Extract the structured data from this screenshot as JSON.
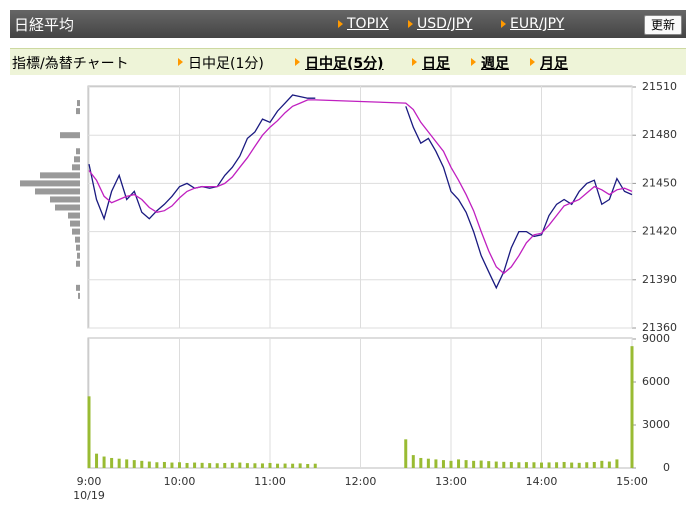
{
  "header": {
    "title": "日経平均",
    "links": [
      "TOPIX",
      "USD/JPY",
      "EUR/JPY"
    ],
    "button": "更新"
  },
  "tabs": {
    "label": "指標/為替チャート",
    "items": [
      "日中足(1分)",
      "日中足(5分)",
      "日足",
      "週足",
      "月足"
    ]
  },
  "chart_data": [
    {
      "type": "line",
      "date_label": "10/19",
      "xlim": [
        0,
        360
      ],
      "xticks": [
        {
          "value": 0,
          "label": "9:00"
        },
        {
          "value": 60,
          "label": "10:00"
        },
        {
          "value": 120,
          "label": "11:00"
        },
        {
          "value": 180,
          "label": "12:00"
        },
        {
          "value": 240,
          "label": "13:00"
        },
        {
          "value": 300,
          "label": "14:00"
        },
        {
          "value": 360,
          "label": "15:00"
        }
      ],
      "ylim": [
        21360,
        21510
      ],
      "yticks": [
        21360,
        21390,
        21420,
        21450,
        21480,
        21510
      ],
      "grid": true,
      "x": [
        0,
        5,
        10,
        15,
        20,
        25,
        30,
        35,
        40,
        45,
        50,
        55,
        60,
        65,
        70,
        75,
        80,
        85,
        90,
        95,
        100,
        105,
        110,
        115,
        120,
        125,
        130,
        135,
        140,
        145,
        150,
        180,
        210,
        215,
        220,
        225,
        230,
        235,
        240,
        245,
        250,
        255,
        260,
        265,
        270,
        275,
        280,
        285,
        290,
        295,
        300,
        305,
        310,
        315,
        320,
        325,
        330,
        335,
        340,
        345,
        350,
        355,
        360
      ],
      "series": [
        {
          "color": "#1a1a80",
          "values": [
            21462,
            21440,
            21428,
            21445,
            21455,
            21440,
            21445,
            21432,
            21428,
            21433,
            21437,
            21442,
            21448,
            21450,
            21447,
            21448,
            21447,
            21448,
            21455,
            21460,
            21467,
            21478,
            21482,
            21490,
            21488,
            21495,
            21500,
            21505,
            21504,
            21503,
            21503,
            null,
            21498,
            21485,
            21475,
            21478,
            21470,
            21460,
            21445,
            21440,
            21432,
            21420,
            21405,
            21395,
            21385,
            21395,
            21410,
            21420,
            21420,
            21417,
            21418,
            21430,
            21437,
            21440,
            21437,
            21445,
            21450,
            21452,
            21437,
            21440,
            21453,
            21445,
            21443
          ]
        },
        {
          "color": "#c020c0",
          "values": [
            21458,
            21452,
            21442,
            21438,
            21440,
            21442,
            21443,
            21440,
            21435,
            21432,
            21433,
            21436,
            21441,
            21445,
            21447,
            21448,
            21448,
            21448,
            21450,
            21454,
            21460,
            21466,
            21473,
            21480,
            21485,
            21489,
            21494,
            21498,
            21500,
            21502,
            21502,
            21501,
            21500,
            21496,
            21488,
            21482,
            21476,
            21470,
            21460,
            21452,
            21443,
            21433,
            21420,
            21408,
            21398,
            21394,
            21398,
            21405,
            21413,
            21418,
            21419,
            21424,
            21430,
            21436,
            21438,
            21440,
            21444,
            21448,
            21446,
            21443,
            21446,
            21447,
            21445
          ]
        }
      ]
    },
    {
      "type": "bar",
      "color": "#99bb33",
      "ylim": [
        0,
        9000
      ],
      "yticks": [
        0,
        3000,
        6000,
        9000
      ],
      "x": [
        0,
        5,
        10,
        15,
        20,
        25,
        30,
        35,
        40,
        45,
        50,
        55,
        60,
        65,
        70,
        75,
        80,
        85,
        90,
        95,
        100,
        105,
        110,
        115,
        120,
        125,
        130,
        135,
        140,
        145,
        150,
        210,
        215,
        220,
        225,
        230,
        235,
        240,
        245,
        250,
        255,
        260,
        265,
        270,
        275,
        280,
        285,
        290,
        295,
        300,
        305,
        310,
        315,
        320,
        325,
        330,
        335,
        340,
        345,
        350,
        360
      ],
      "values": [
        5000,
        1000,
        800,
        700,
        650,
        600,
        550,
        500,
        450,
        400,
        420,
        380,
        400,
        350,
        380,
        360,
        340,
        330,
        350,
        360,
        380,
        340,
        330,
        320,
        350,
        300,
        310,
        300,
        320,
        280,
        300,
        2000,
        900,
        700,
        650,
        600,
        550,
        500,
        600,
        550,
        500,
        520,
        480,
        450,
        430,
        420,
        400,
        410,
        400,
        380,
        390,
        400,
        420,
        380,
        360,
        400,
        420,
        500,
        450,
        600,
        8500
      ]
    },
    {
      "type": "hbar",
      "color": "#999999",
      "xlim": [
        0,
        60
      ],
      "y": [
        21500,
        21495,
        21480,
        21470,
        21465,
        21460,
        21455,
        21450,
        21445,
        21440,
        21435,
        21430,
        21425,
        21420,
        21415,
        21410,
        21405,
        21400,
        21385,
        21380
      ],
      "values": [
        3,
        4,
        20,
        4,
        6,
        8,
        40,
        60,
        45,
        30,
        25,
        12,
        10,
        8,
        5,
        4,
        3,
        4,
        4,
        2
      ]
    }
  ]
}
